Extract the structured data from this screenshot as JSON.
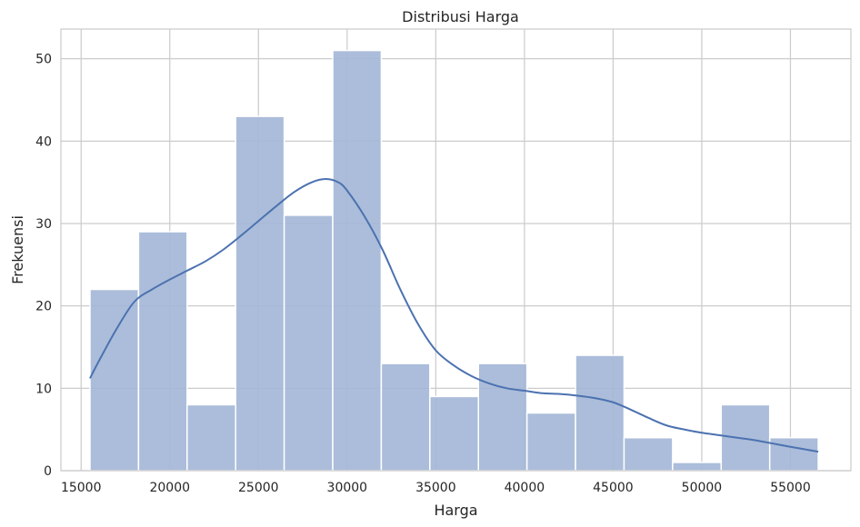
{
  "chart_data": {
    "type": "bar",
    "title": "Distribusi Harga",
    "xlabel": "Harga",
    "ylabel": "Frekuensi",
    "xlim": [
      13860,
      58410
    ],
    "ylim": [
      0,
      53.6
    ],
    "xticks": [
      15000,
      20000,
      25000,
      30000,
      35000,
      40000,
      45000,
      50000,
      55000
    ],
    "yticks": [
      0,
      10,
      20,
      30,
      40,
      50
    ],
    "bin_edges": [
      15500,
      18238,
      20976,
      23714,
      26452,
      29190,
      31928,
      34666,
      37404,
      40142,
      42880,
      45618,
      48356,
      51094,
      53832,
      56570
    ],
    "values": [
      22,
      29,
      8,
      43,
      31,
      51,
      13,
      9,
      13,
      7,
      14,
      4,
      1,
      8,
      4
    ],
    "kde": {
      "x": [
        15500,
        16000,
        17000,
        18000,
        19000,
        20000,
        21000,
        22000,
        23000,
        24000,
        25000,
        26000,
        27000,
        28000,
        28800,
        29500,
        30000,
        31000,
        32000,
        33000,
        34000,
        35000,
        36000,
        37000,
        38000,
        39000,
        40000,
        41000,
        42000,
        43000,
        44000,
        45000,
        46000,
        47000,
        48000,
        49000,
        50000,
        51000,
        52000,
        53000,
        54000,
        55000,
        56570
      ],
      "y": [
        11.2,
        13.3,
        17.2,
        20.5,
        22.0,
        23.2,
        24.3,
        25.4,
        26.8,
        28.5,
        30.3,
        32.1,
        33.8,
        35.0,
        35.4,
        35.0,
        34.0,
        30.8,
        26.8,
        22.0,
        17.8,
        14.6,
        12.8,
        11.5,
        10.6,
        10.0,
        9.7,
        9.4,
        9.3,
        9.1,
        8.8,
        8.3,
        7.4,
        6.4,
        5.5,
        5.0,
        4.6,
        4.3,
        4.0,
        3.7,
        3.3,
        2.9,
        2.3
      ]
    },
    "grid": true,
    "colors": {
      "bar_fill": "#a4b7d7",
      "bar_edge": "#ffffff",
      "kde_line": "#4c72b0",
      "grid": "#cccccc",
      "spine": "#cccccc",
      "text": "#262626"
    }
  }
}
